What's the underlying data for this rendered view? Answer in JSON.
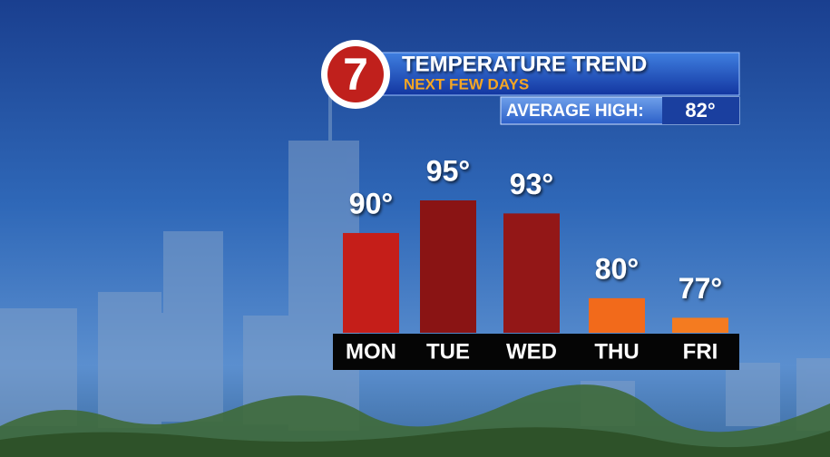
{
  "logo": "7",
  "chart_data": {
    "type": "bar",
    "title": "TEMPERATURE TREND",
    "subtitle": "NEXT FEW DAYS",
    "average_high_label": "AVERAGE HIGH:",
    "average_high": "82°",
    "categories": [
      "MON",
      "TUE",
      "WED",
      "THU",
      "FRI"
    ],
    "values": [
      90,
      95,
      93,
      80,
      77
    ],
    "value_labels": [
      "90°",
      "95°",
      "93°",
      "80°",
      "77°"
    ],
    "colors": [
      "#c51e19",
      "#8a1414",
      "#931717",
      "#f26a1b",
      "#f47b20"
    ],
    "ylim": [
      74.7,
      95
    ]
  }
}
